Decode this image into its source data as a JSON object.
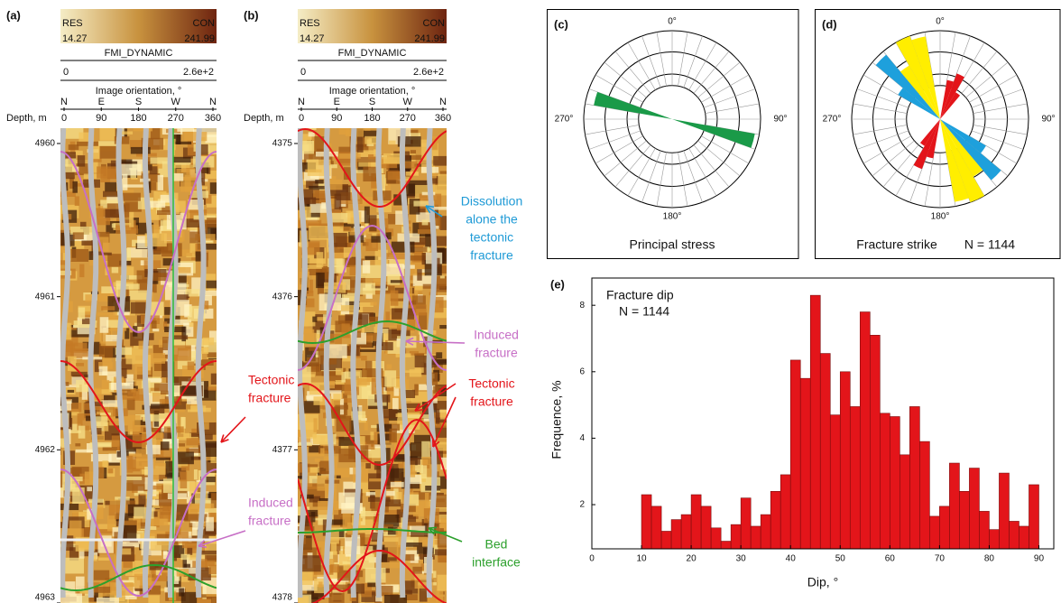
{
  "chart_data": [
    {
      "type": "image-log",
      "label": "(a)",
      "colorbar": {
        "left": "RES",
        "right": "CON",
        "min": 14.27,
        "max": 241.99,
        "name": "FMI_DYNAMIC",
        "range": [
          0,
          {
            "value": 260,
            "label": "2.6e+2"
          }
        ]
      },
      "x_label": "Image orientation, °",
      "compass": [
        "N",
        "E",
        "S",
        "W",
        "N"
      ],
      "xlim": [
        0,
        360
      ],
      "xticks": [
        0,
        90,
        180,
        270,
        360
      ],
      "y_label": "Depth, m",
      "ylim": [
        4959.9,
        4963
      ],
      "yticks": [
        4960,
        4961,
        4962,
        4963
      ],
      "annotations": [
        {
          "lines": [
            "Tectonic",
            "fracture"
          ],
          "color": "#e3151a"
        },
        {
          "lines": [
            "Induced",
            "fracture"
          ],
          "color": "#c76fc6"
        }
      ]
    },
    {
      "type": "image-log",
      "label": "(b)",
      "colorbar": {
        "left": "RES",
        "right": "CON",
        "min": 14.27,
        "max": 241.99,
        "name": "FMI_DYNAMIC",
        "range": [
          0,
          {
            "value": 260,
            "label": "2.6e+2"
          }
        ]
      },
      "x_label": "Image orientation, °",
      "compass": [
        "N",
        "E",
        "S",
        "W",
        "N"
      ],
      "xlim": [
        0,
        360
      ],
      "xticks": [
        0,
        90,
        180,
        270,
        360
      ],
      "y_label": "Depth, m",
      "ylim": [
        4374.9,
        4378
      ],
      "yticks": [
        4375,
        4376,
        4377,
        4378
      ],
      "annotations": [
        {
          "lines": [
            "Dissolution",
            "alone the",
            "tectonic",
            "fracture"
          ],
          "color": "#1e9ad6"
        },
        {
          "lines": [
            "Induced",
            "fracture"
          ],
          "color": "#c76fc6"
        },
        {
          "lines": [
            "Tectonic",
            "fracture"
          ],
          "color": "#e3151a"
        },
        {
          "lines": [
            "Bed",
            "interface"
          ],
          "color": "#2ca02c"
        }
      ]
    },
    {
      "type": "rose",
      "label": "(c)",
      "title": "Principal stress",
      "rlim": [
        0,
        1
      ],
      "angle_ticks": [
        {
          "value": 0,
          "label": "0°"
        },
        {
          "value": 90,
          "label": "90°"
        },
        {
          "value": 180,
          "label": "180°"
        },
        {
          "value": 270,
          "label": "270°"
        }
      ],
      "series": [
        {
          "color": "#1a9a48",
          "angles": [
            [
              280,
              290
            ],
            [
              100,
              110
            ]
          ],
          "values": [
            0.9,
            0.95
          ]
        }
      ]
    },
    {
      "type": "rose",
      "label": "(d)",
      "title": "Fracture strike",
      "count_label": "N = 1144",
      "rlim": [
        0,
        1
      ],
      "angle_ticks": [
        {
          "value": 0,
          "label": "0°"
        },
        {
          "value": 90,
          "label": "90°"
        },
        {
          "value": 180,
          "label": "180°"
        },
        {
          "value": 270,
          "label": "270°"
        }
      ],
      "series": [
        {
          "color": "#ffee00",
          "angles": [
            [
              320,
              330
            ],
            [
              330,
              340
            ],
            [
              340,
              350
            ],
            [
              140,
              150
            ],
            [
              150,
              160
            ],
            [
              160,
              170
            ]
          ],
          "values": [
            0.7,
            1.0,
            0.95,
            0.75,
            1.0,
            0.95
          ]
        },
        {
          "color": "#1ea0dc",
          "angles": [
            [
              300,
              310
            ],
            [
              310,
              320
            ],
            [
              120,
              130
            ],
            [
              130,
              140
            ]
          ],
          "values": [
            0.55,
            0.95,
            0.6,
            0.9
          ]
        },
        {
          "color": "#e3151a",
          "angles": [
            [
              10,
              20
            ],
            [
              20,
              30
            ],
            [
              30,
              40
            ],
            [
              190,
              200
            ],
            [
              200,
              210
            ],
            [
              210,
              220
            ]
          ],
          "values": [
            0.45,
            0.55,
            0.35,
            0.45,
            0.6,
            0.35
          ]
        }
      ]
    },
    {
      "type": "histogram",
      "label": "(e)",
      "annotation": "Fracture dip",
      "count_label": "N = 1144",
      "x_label": "Dip, °",
      "y_label": "Frequence, %",
      "color": "#e3151a",
      "bins": [
        10,
        12,
        14,
        16,
        18,
        20,
        22,
        24,
        26,
        28,
        30,
        32,
        34,
        36,
        38,
        40,
        42,
        44,
        46,
        48,
        50,
        52,
        54,
        56,
        58,
        60,
        62,
        64,
        66,
        68,
        70,
        72,
        74,
        76,
        78,
        80,
        82,
        84,
        86,
        88,
        90
      ],
      "values": [
        2.3,
        1.95,
        1.2,
        1.55,
        1.7,
        2.3,
        1.95,
        1.3,
        0.9,
        1.4,
        2.2,
        1.35,
        1.7,
        2.4,
        2.9,
        6.35,
        5.8,
        8.3,
        6.55,
        4.7,
        6.0,
        4.95,
        7.8,
        7.1,
        4.75,
        4.65,
        3.5,
        4.95,
        3.9,
        1.65,
        1.95,
        3.25,
        2.4,
        3.1,
        1.8,
        1.25,
        2.95,
        1.5,
        1.35,
        2.6
      ],
      "xlim": [
        0,
        93
      ],
      "xticks": [
        0,
        10,
        20,
        30,
        40,
        50,
        60,
        70,
        80,
        90
      ],
      "ylim": [
        0.67,
        8.82
      ],
      "yticks": [
        2,
        4,
        6,
        8
      ]
    }
  ]
}
